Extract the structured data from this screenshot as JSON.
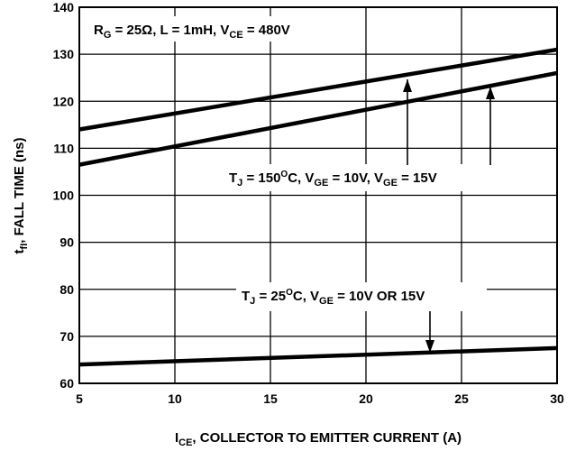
{
  "chart_data": {
    "type": "line",
    "xlabel": {
      "main": "I",
      "sub": "CE",
      "rest": ", COLLECTOR TO EMITTER CURRENT (A)"
    },
    "ylabel": {
      "main": "t",
      "sub": "fI",
      "rest": ", FALL TIME  (ns)"
    },
    "xlim": [
      5,
      30
    ],
    "ylim": [
      60,
      140
    ],
    "xticks": [
      "5",
      "10",
      "15",
      "20",
      "25",
      "30"
    ],
    "yticks": [
      "60",
      "70",
      "80",
      "90",
      "100",
      "110",
      "120",
      "130",
      "140"
    ],
    "grid": true,
    "series": [
      {
        "x": [
          5,
          30
        ],
        "y": [
          114,
          131
        ]
      },
      {
        "x": [
          5,
          30
        ],
        "y": [
          106.5,
          126
        ]
      },
      {
        "x": [
          5,
          30
        ],
        "y": [
          64,
          67.5
        ]
      }
    ],
    "annotations": {
      "conditions": [
        {
          "text": "R",
          "sub": "G"
        },
        {
          "text": " = 25Ω, L = 1mH, V",
          "sub": "CE"
        },
        {
          "text": " = 480V",
          "sub": ""
        }
      ],
      "hot": [
        {
          "text": "T",
          "sub": "J",
          "sup": ""
        },
        {
          "text": " = 150",
          "sub": "",
          "sup": "O"
        },
        {
          "text": "C, V",
          "sub": "GE",
          "sup": ""
        },
        {
          "text": " = 10V, V",
          "sub": "GE",
          "sup": ""
        },
        {
          "text": " = 15V",
          "sub": "",
          "sup": ""
        }
      ],
      "cold": [
        {
          "text": "T",
          "sub": "J",
          "sup": ""
        },
        {
          "text": " = 25",
          "sub": "",
          "sup": "O"
        },
        {
          "text": "C, V",
          "sub": "GE",
          "sup": ""
        },
        {
          "text": " = 10V OR 15V",
          "sub": "",
          "sup": ""
        }
      ]
    }
  }
}
